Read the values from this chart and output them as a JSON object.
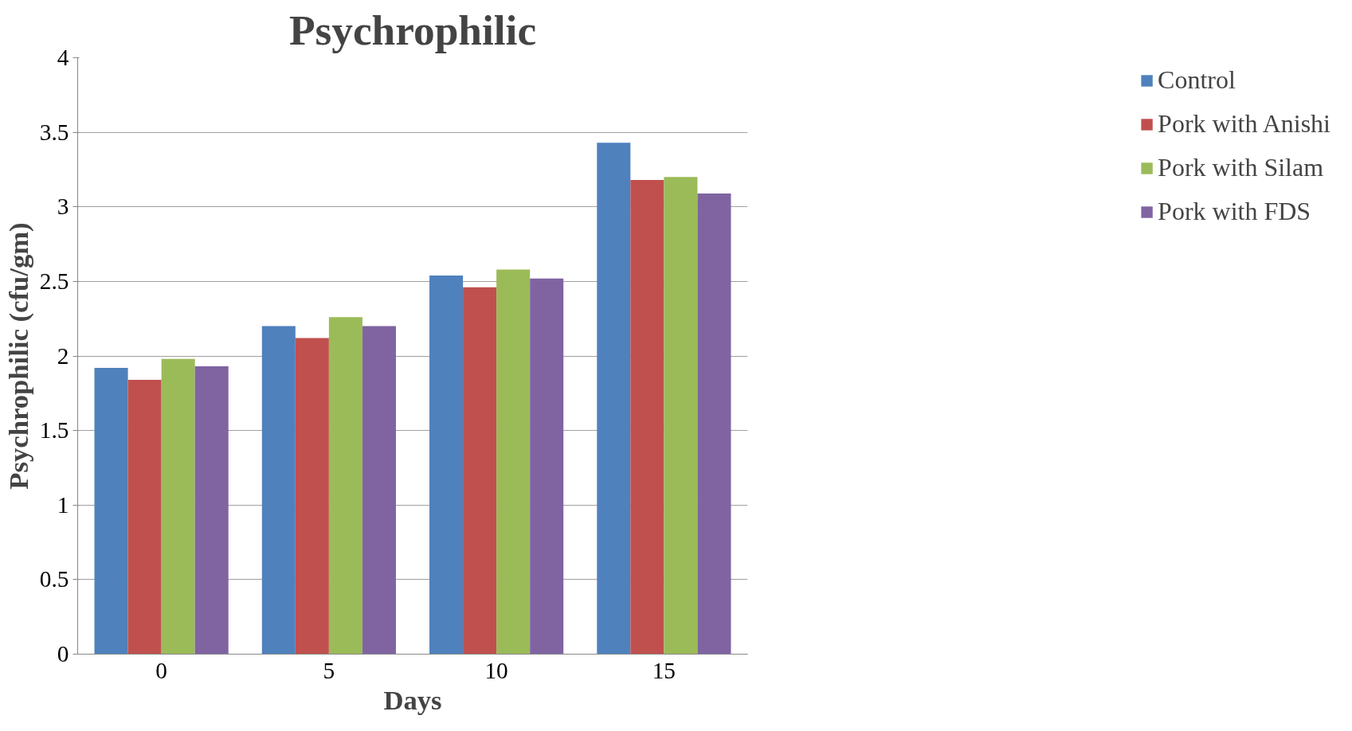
{
  "chart_data": {
    "type": "bar",
    "title": "Psychrophilic",
    "xlabel": "Days",
    "ylabel": "Psychrophilic (cfu/gm)",
    "categories": [
      "0",
      "5",
      "10",
      "15"
    ],
    "series": [
      {
        "name": "Control",
        "color": "#4f81bd",
        "values": [
          1.92,
          2.2,
          2.54,
          3.43
        ]
      },
      {
        "name": "Pork with Anishi",
        "color": "#c0504d",
        "values": [
          1.84,
          2.12,
          2.46,
          3.18
        ]
      },
      {
        "name": "Pork with Silam",
        "color": "#9bbb59",
        "values": [
          1.98,
          2.26,
          2.58,
          3.2
        ]
      },
      {
        "name": "Pork with FDS",
        "color": "#8064a2",
        "values": [
          1.93,
          2.2,
          2.52,
          3.09
        ]
      }
    ],
    "ylim": [
      0,
      4
    ],
    "yticks": [
      0,
      0.5,
      1,
      1.5,
      2,
      2.5,
      3,
      3.5,
      4
    ],
    "grid": "y",
    "legend": "right"
  }
}
